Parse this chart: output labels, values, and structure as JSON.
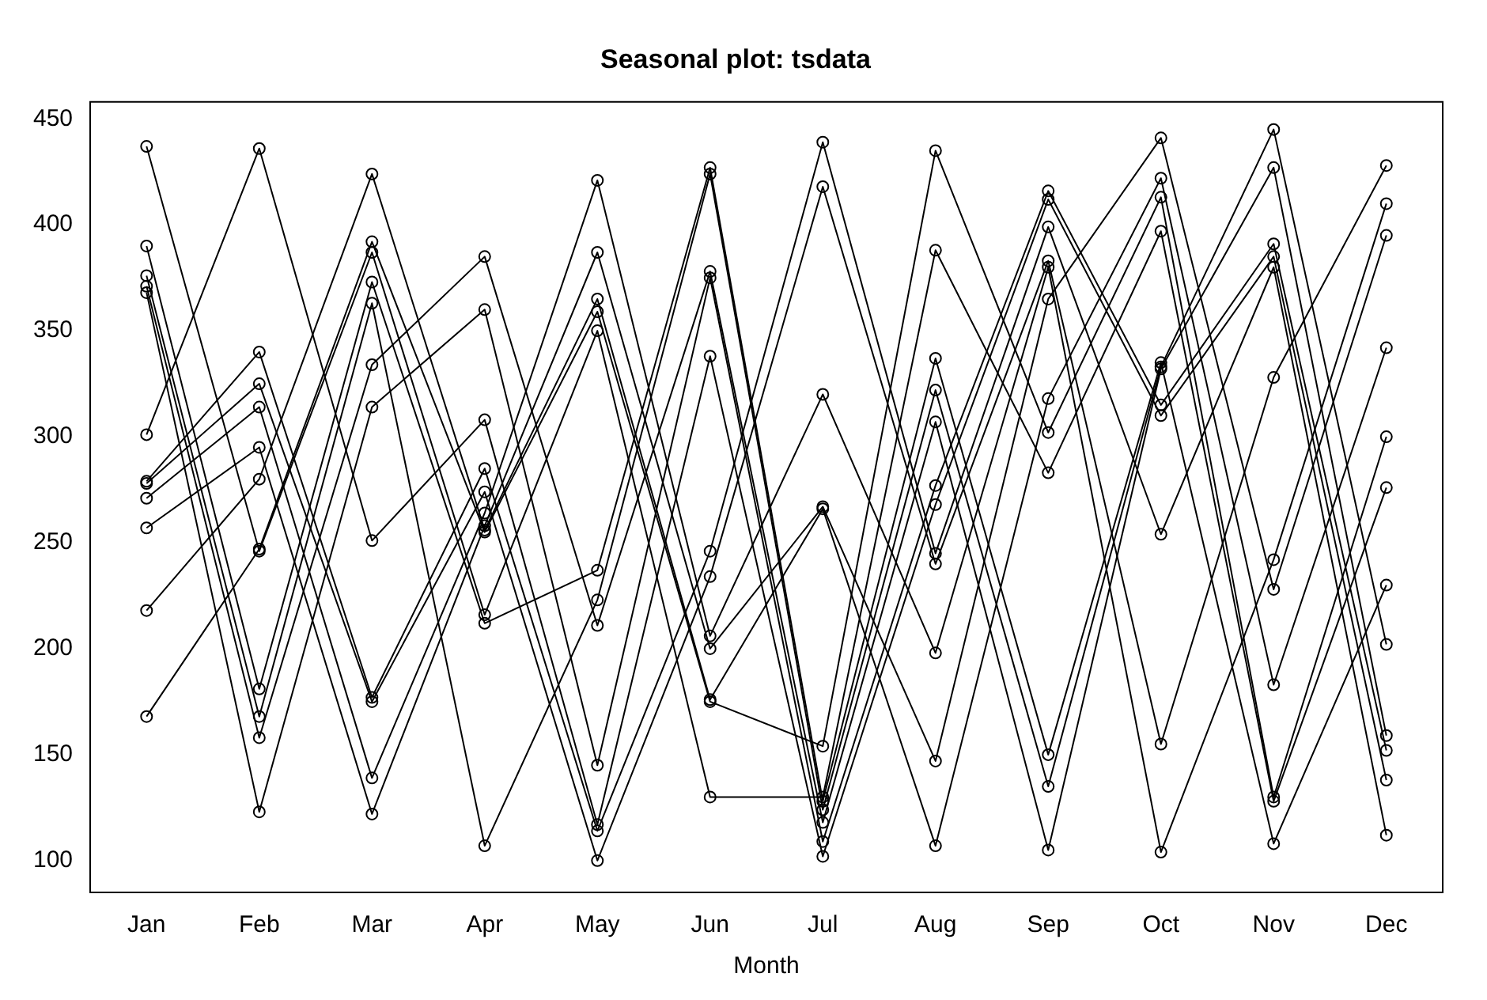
{
  "chart_data": {
    "type": "line",
    "title": "Seasonal plot: tsdata",
    "xlabel": "Month",
    "categories": [
      "Jan",
      "Feb",
      "Mar",
      "Apr",
      "May",
      "Jun",
      "Jul",
      "Aug",
      "Sep",
      "Oct",
      "Nov",
      "Dec"
    ],
    "ylim": [
      85,
      458
    ],
    "yticks": [
      100,
      150,
      200,
      250,
      300,
      350,
      400,
      450
    ],
    "grid": false,
    "legend": false,
    "marker": "circle",
    "line_style": "solid",
    "series": [
      {
        "color": "#000000",
        "values": [
          437,
          246,
          387,
          216,
          350,
          130,
          130,
          388,
          283,
          397,
          128,
          276
        ]
      },
      {
        "color": "#000000",
        "values": [
          390,
          181,
          373,
          212,
          237,
          427,
          128,
          337,
          150,
          335,
          108,
          230
        ]
      },
      {
        "color": "#000000",
        "values": [
          376,
          168,
          363,
          107,
          223,
          424,
          124,
          322,
          135,
          333,
          445,
          202
        ]
      },
      {
        "color": "#000000",
        "values": [
          371,
          158,
          334,
          385,
          211,
          378,
          118,
          307,
          105,
          332,
          427,
          159
        ]
      },
      {
        "color": "#000000",
        "values": [
          368,
          123,
          314,
          360,
          145,
          375,
          109,
          277,
          416,
          315,
          391,
          152
        ]
      },
      {
        "color": "#000000",
        "values": [
          301,
          436,
          251,
          308,
          117,
          338,
          102,
          268,
          412,
          310,
          385,
          138
        ]
      },
      {
        "color": "#000000",
        "values": [
          279,
          340,
          177,
          285,
          114,
          246,
          439,
          245,
          399,
          254,
          380,
          112
        ]
      },
      {
        "color": "#000000",
        "values": [
          278,
          325,
          175,
          274,
          100,
          234,
          418,
          240,
          383,
          155,
          328,
          428
        ]
      },
      {
        "color": "#000000",
        "values": [
          271,
          314,
          139,
          264,
          421,
          206,
          320,
          198,
          380,
          104,
          242,
          410
        ]
      },
      {
        "color": "#000000",
        "values": [
          257,
          295,
          122,
          258,
          387,
          200,
          267,
          147,
          365,
          441,
          228,
          395
        ]
      },
      {
        "color": "#000000",
        "values": [
          218,
          280,
          424,
          256,
          365,
          176,
          266,
          107,
          318,
          422,
          183,
          342
        ]
      },
      {
        "color": "#000000",
        "values": [
          168,
          247,
          392,
          255,
          359,
          175,
          154,
          435,
          302,
          413,
          130,
          300
        ]
      }
    ]
  }
}
